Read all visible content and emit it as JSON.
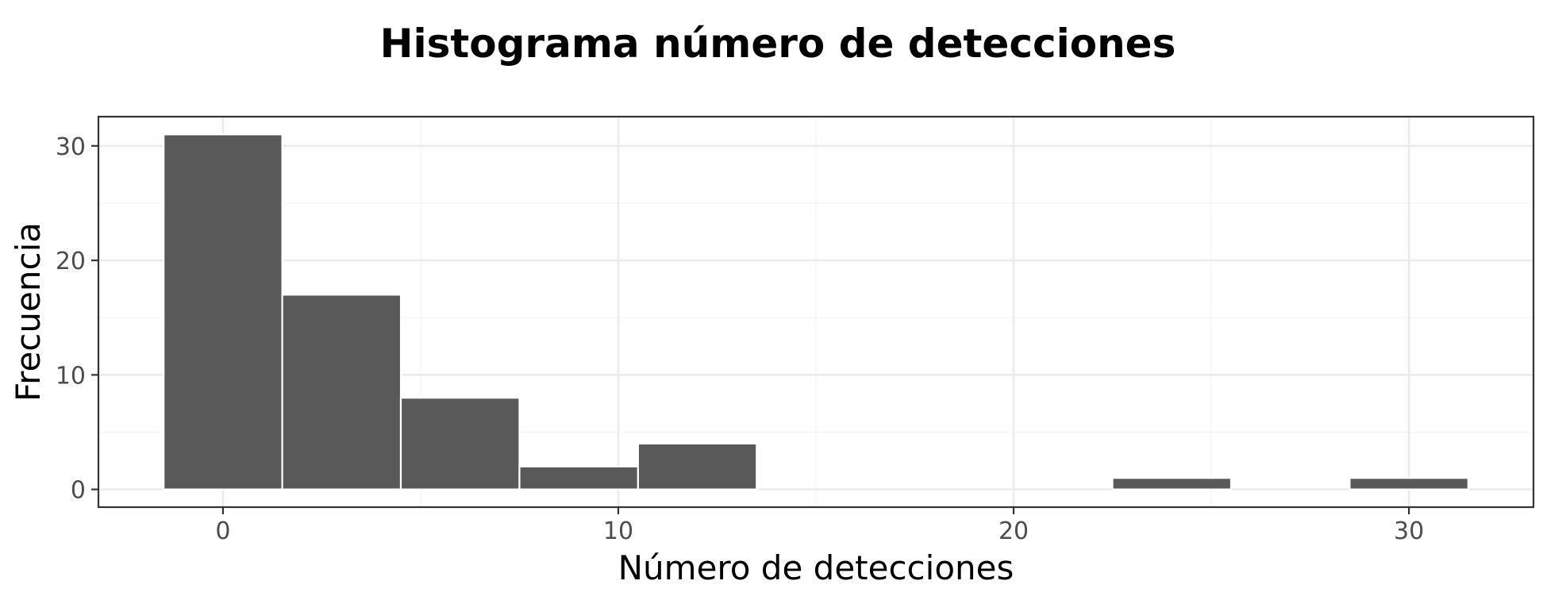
{
  "chart_data": {
    "type": "bar",
    "title": "Histograma número de detecciones",
    "xlabel": "Número de detecciones",
    "ylabel": "Frecuencia",
    "bin_width": 3,
    "bins": [
      {
        "start": -1.5,
        "end": 1.5,
        "count": 31
      },
      {
        "start": 1.5,
        "end": 4.5,
        "count": 17
      },
      {
        "start": 4.5,
        "end": 7.5,
        "count": 8
      },
      {
        "start": 7.5,
        "end": 10.5,
        "count": 2
      },
      {
        "start": 10.5,
        "end": 13.5,
        "count": 4
      },
      {
        "start": 13.5,
        "end": 16.5,
        "count": 0
      },
      {
        "start": 16.5,
        "end": 19.5,
        "count": 0
      },
      {
        "start": 19.5,
        "end": 22.5,
        "count": 0
      },
      {
        "start": 22.5,
        "end": 25.5,
        "count": 1
      },
      {
        "start": 25.5,
        "end": 28.5,
        "count": 0
      },
      {
        "start": 28.5,
        "end": 31.5,
        "count": 1
      }
    ],
    "xlim": [
      -3.15,
      33.15
    ],
    "ylim": [
      -1.55,
      32.55
    ],
    "x_ticks": [
      0,
      10,
      20,
      30
    ],
    "x_tick_labels": [
      "0",
      "10",
      "20",
      "30"
    ],
    "y_ticks": [
      0,
      10,
      20,
      30
    ],
    "y_tick_labels": [
      "0",
      "10",
      "20",
      "30"
    ],
    "x_minor": [
      5,
      15,
      25
    ],
    "y_minor": [
      5,
      15,
      25
    ],
    "grid": true,
    "bar_color": "#595959",
    "bar_outline_color": "#ffffff"
  }
}
